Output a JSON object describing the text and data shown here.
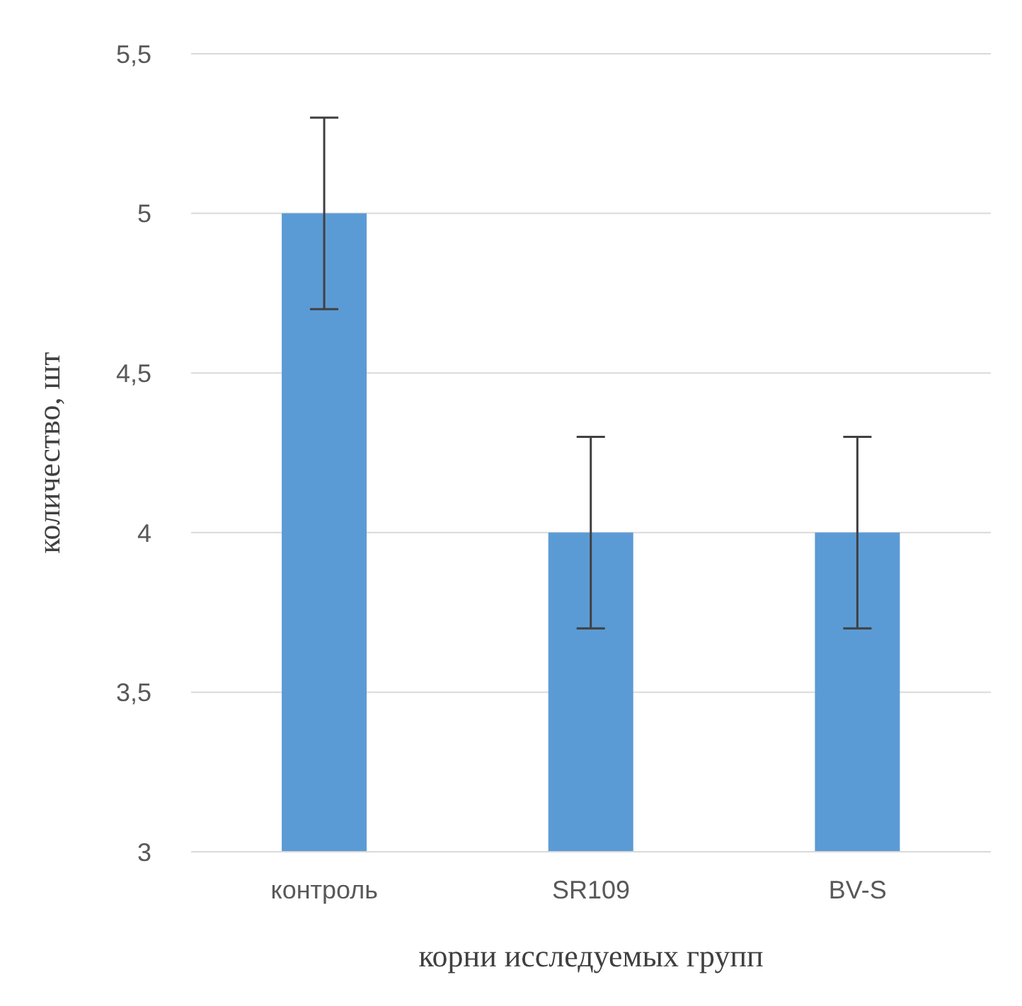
{
  "chart_data": {
    "type": "bar",
    "xlabel": "корни исследуемых групп",
    "ylabel": "количество, шт",
    "categories": [
      "контроль",
      "SR109",
      "BV-S"
    ],
    "values": [
      5,
      4,
      4
    ],
    "errors": [
      0.3,
      0.3,
      0.3
    ],
    "color": "#5b9bd5",
    "ylim": [
      3,
      5.5
    ],
    "yticks": [
      {
        "value": 3,
        "label": "3"
      },
      {
        "value": 3.5,
        "label": "3,5"
      },
      {
        "value": 4,
        "label": "4"
      },
      {
        "value": 4.5,
        "label": "4,5"
      },
      {
        "value": 5,
        "label": "5"
      },
      {
        "value": 5.5,
        "label": "5,5"
      }
    ],
    "grid": "y"
  }
}
